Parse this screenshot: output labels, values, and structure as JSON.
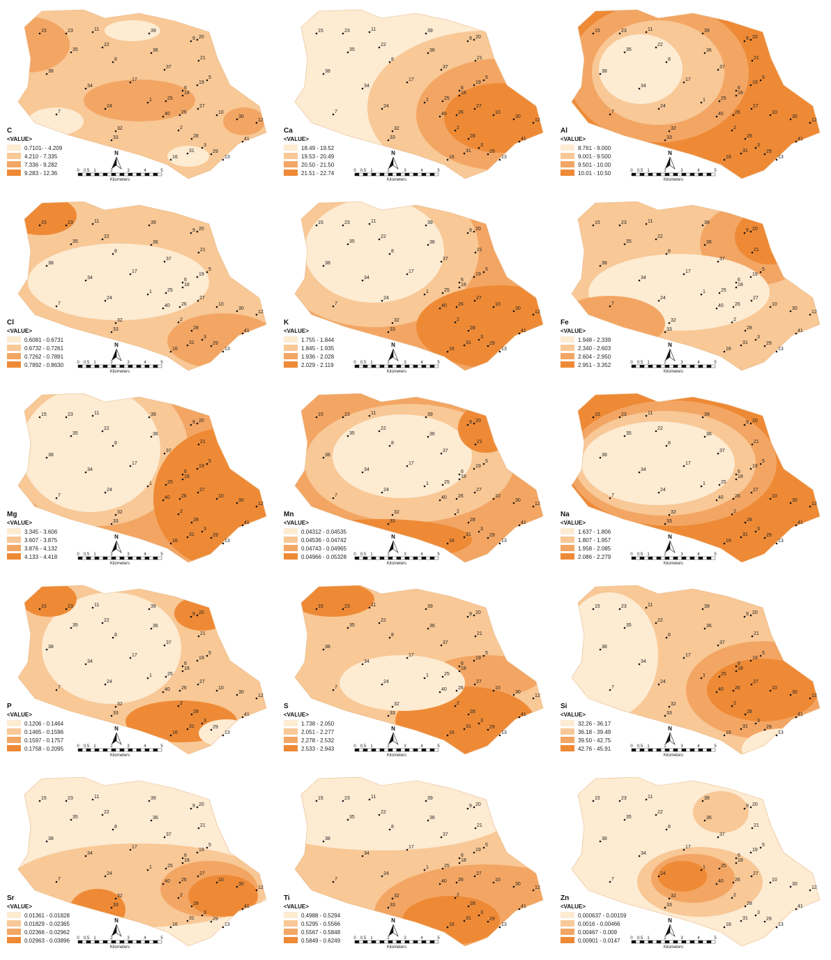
{
  "value_heading": "<VALUE>",
  "north": "N",
  "legend_colors": [
    "#fdebd2",
    "#f8c896",
    "#f3a664",
    "#ee8a36"
  ],
  "scale": {
    "ticks": [
      "0",
      "0.5",
      "1",
      "2",
      "3",
      "4",
      "5"
    ],
    "unit": "Kilometers"
  },
  "points": [
    "15",
    "23",
    "11",
    "39",
    "9",
    "20",
    "35",
    "22",
    "36",
    "21",
    "8",
    "37",
    "38",
    "17",
    "34",
    "6",
    "18",
    "19",
    "5",
    "1",
    "25",
    "24",
    "27",
    "40",
    "26",
    "10",
    "30",
    "12",
    "7",
    "2",
    "28",
    "32",
    "33",
    "41",
    "3",
    "16",
    "31",
    "29",
    "13"
  ],
  "panels": [
    {
      "element": "C",
      "classes": [
        "0.7101- - 4.209",
        "4.210 - 7.335",
        "7.336 - 9.282",
        "9.283 - 12.36"
      ]
    },
    {
      "element": "Ca",
      "classes": [
        "18.49 - 19.52",
        "19.53 - 20.49",
        "20.50 - 21.50",
        "21.51 - 22.74"
      ]
    },
    {
      "element": "Al",
      "classes": [
        "8.761 - 9.000",
        "9.001 - 9.500",
        "9.501 - 10.00",
        "10.01 - 10.50"
      ]
    },
    {
      "element": "Cl",
      "classes": [
        "0.6081 - 0.6731",
        "0.6732 - 0.7261",
        "0.7262 - 0.7891",
        "0.7892 - 0.8630"
      ]
    },
    {
      "element": "K",
      "classes": [
        "1.755 - 1.844",
        "1.845 - 1.935",
        "1.936 - 2.028",
        "2.029 - 2.119"
      ]
    },
    {
      "element": "Fe",
      "classes": [
        "1.948 - 2.339",
        "2.340 - 2.603",
        "2.604 - 2.950",
        "2.951 - 3.352"
      ]
    },
    {
      "element": "Mg",
      "classes": [
        "3.345 - 3.606",
        "3.607 - 3.875",
        "3.876 - 4.132",
        "4.133 - 4.418"
      ]
    },
    {
      "element": "Mn",
      "classes": [
        "0.04312 - 0.04535",
        "0.04536 - 0.04742",
        "0.04743 - 0.04965",
        "0.04966 - 0.05328"
      ]
    },
    {
      "element": "Na",
      "classes": [
        "1.637 - 1.806",
        "1.807 - 1.957",
        "1.958 - 2.085",
        "2.086 - 2.279"
      ]
    },
    {
      "element": "P",
      "classes": [
        "0.1206 - 0.1464",
        "0.1465 - 0.1596",
        "0.1597 - 0.1757",
        "0.1758 - 0.2095"
      ]
    },
    {
      "element": "S",
      "classes": [
        "1.738 - 2.050",
        "2.051 - 2.277",
        "2.278 - 2.532",
        "2.533 - 2.943"
      ]
    },
    {
      "element": "Si",
      "classes": [
        "32.26 - 36.17",
        "36.18 - 39.49",
        "39.50 - 42.75",
        "42.76 - 45.91"
      ]
    },
    {
      "element": "Sr",
      "classes": [
        "0.01361 - 0.01828",
        "0.01829 - 0.02365",
        "0.02366 - 0.02962",
        "0.02963 - 0.03896"
      ]
    },
    {
      "element": "Ti",
      "classes": [
        "0.4988 - 0.5294",
        "0.5295 - 0.5566",
        "0.5567 - 0.5848",
        "0.5849 - 0.6249"
      ]
    },
    {
      "element": "Zn",
      "classes": [
        "0.000637 - 0.00159",
        "0.0016 - 0.00466",
        "0.00467 - 0.009",
        "0.00901 - 0.0147"
      ]
    }
  ]
}
